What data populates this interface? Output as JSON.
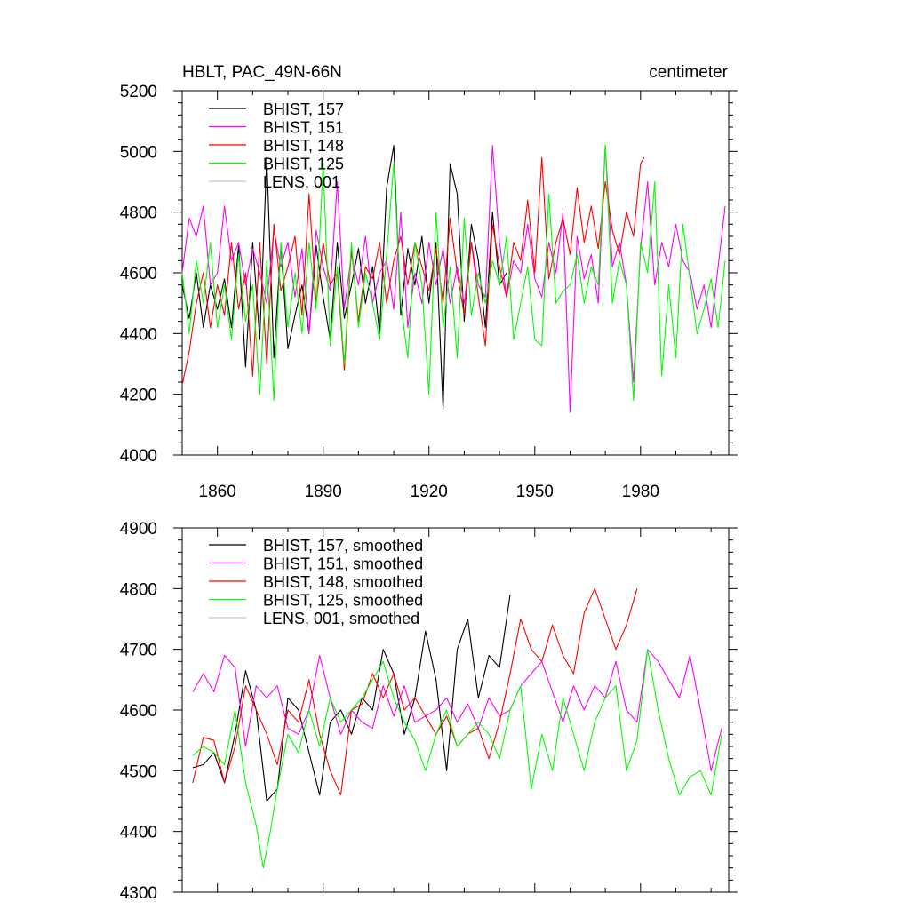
{
  "chart_data": [
    {
      "type": "line",
      "title": "HBLT, PAC_49N-66N",
      "units_label": "centimeter",
      "xlabel": "",
      "ylabel": "",
      "xlim": [
        1850,
        2005
      ],
      "ylim": [
        4000,
        5200
      ],
      "x_ticks": [
        1860,
        1890,
        1920,
        1950,
        1980
      ],
      "y_ticks": [
        4000,
        4200,
        4400,
        4600,
        4800,
        5000,
        5200
      ],
      "grid": false,
      "legend_position": "top-left",
      "series": [
        {
          "name": "BHIST, 157",
          "color": "#000000",
          "x": [
            1850,
            1852,
            1854,
            1856,
            1858,
            1860,
            1862,
            1864,
            1866,
            1868,
            1870,
            1872,
            1874,
            1876,
            1878,
            1880,
            1882,
            1884,
            1886,
            1888,
            1890,
            1892,
            1894,
            1896,
            1898,
            1900,
            1902,
            1904,
            1906,
            1908,
            1910,
            1912,
            1914,
            1916,
            1918,
            1920,
            1922,
            1924,
            1926,
            1928,
            1930,
            1932,
            1934,
            1936,
            1938,
            1940,
            1942
          ],
          "values": [
            4560,
            4450,
            4600,
            4420,
            4560,
            4480,
            4580,
            4420,
            4690,
            4290,
            4700,
            4380,
            4980,
            4320,
            4690,
            4350,
            4460,
            4560,
            4400,
            4690,
            4520,
            4380,
            4700,
            4450,
            4560,
            4680,
            4500,
            4620,
            4400,
            4880,
            5020,
            4460,
            4680,
            4560,
            4720,
            4500,
            4700,
            4150,
            4960,
            4860,
            4440,
            4760,
            4640,
            4420,
            4800,
            4560,
            4600
          ]
        },
        {
          "name": "BHIST, 151",
          "color": "#ff00ff",
          "x": [
            1850,
            1852,
            1854,
            1856,
            1858,
            1860,
            1862,
            1864,
            1866,
            1868,
            1870,
            1872,
            1874,
            1876,
            1878,
            1880,
            1882,
            1884,
            1886,
            1888,
            1890,
            1892,
            1894,
            1896,
            1898,
            1900,
            1902,
            1904,
            1906,
            1908,
            1910,
            1912,
            1914,
            1916,
            1918,
            1920,
            1922,
            1924,
            1926,
            1928,
            1930,
            1932,
            1934,
            1936,
            1938,
            1940,
            1942,
            1944,
            1946,
            1948,
            1950,
            1952,
            1954,
            1956,
            1958,
            1960,
            1962,
            1964,
            1966,
            1968,
            1970,
            1972,
            1974,
            1976,
            1978,
            1980,
            1982,
            1984,
            1986,
            1988,
            1990,
            1992,
            1994,
            1996,
            1998,
            2000,
            2002,
            2004
          ],
          "values": [
            4600,
            4780,
            4720,
            4820,
            4560,
            4600,
            4820,
            4640,
            4700,
            4560,
            4680,
            4600,
            4500,
            4740,
            4620,
            4700,
            4520,
            4680,
            4400,
            4740,
            4620,
            4540,
            4900,
            4480,
            4660,
            4560,
            4720,
            4500,
            4600,
            4640,
            4480,
            4800,
            4420,
            4600,
            4500,
            4700,
            4560,
            4680,
            4500,
            4620,
            4500,
            4700,
            4560,
            4520,
            5020,
            4700,
            4520,
            4640,
            4600,
            4760,
            4580,
            4520,
            4700,
            4600,
            4800,
            4140,
            4720,
            4580,
            4660,
            4500,
            5020,
            4620,
            4700,
            4560,
            4240,
            4680,
            4900,
            4560,
            4700,
            4620,
            4760,
            4640,
            4600,
            4480,
            4560,
            4420,
            4620,
            4820
          ]
        },
        {
          "name": "BHIST, 148",
          "color": "#ff0000",
          "x": [
            1850,
            1852,
            1854,
            1856,
            1858,
            1860,
            1862,
            1864,
            1866,
            1868,
            1870,
            1872,
            1874,
            1876,
            1878,
            1880,
            1882,
            1884,
            1886,
            1888,
            1890,
            1892,
            1894,
            1896,
            1898,
            1900,
            1902,
            1904,
            1906,
            1908,
            1910,
            1912,
            1914,
            1916,
            1918,
            1920,
            1922,
            1924,
            1926,
            1928,
            1930,
            1932,
            1934,
            1936,
            1938,
            1940,
            1942,
            1944,
            1946,
            1948,
            1950,
            1952,
            1954,
            1956,
            1958,
            1960,
            1962,
            1964,
            1966,
            1968,
            1970,
            1972,
            1974,
            1976,
            1978,
            1980,
            1981
          ],
          "values": [
            4230,
            4340,
            4500,
            4600,
            4420,
            4560,
            4460,
            4700,
            4480,
            4600,
            4260,
            4700,
            4300,
            4760,
            4540,
            4620,
            4720,
            4460,
            4860,
            4500,
            4700,
            4560,
            4600,
            4280,
            4680,
            4440,
            4620,
            4580,
            4700,
            4500,
            4640,
            4720,
            4560,
            4700,
            4620,
            4540,
            4680,
            4500,
            4780,
            4600,
            4460,
            4700,
            4520,
            4360,
            4760,
            4620,
            4520,
            4700,
            4640,
            4840,
            4600,
            4980,
            4580,
            4700,
            4780,
            4660,
            4880,
            4700,
            4820,
            4680,
            4900,
            4740,
            4660,
            4800,
            4720,
            4960,
            4980
          ]
        },
        {
          "name": "BHIST, 125",
          "color": "#00ff00",
          "x": [
            1850,
            1852,
            1854,
            1856,
            1858,
            1860,
            1862,
            1864,
            1866,
            1868,
            1870,
            1872,
            1874,
            1876,
            1878,
            1880,
            1882,
            1884,
            1886,
            1888,
            1890,
            1892,
            1894,
            1896,
            1898,
            1900,
            1902,
            1904,
            1906,
            1908,
            1910,
            1912,
            1914,
            1916,
            1918,
            1920,
            1922,
            1924,
            1926,
            1928,
            1930,
            1932,
            1934,
            1936,
            1938,
            1940,
            1942,
            1944,
            1946,
            1948,
            1950,
            1952,
            1954,
            1956,
            1958,
            1960,
            1962,
            1964,
            1966,
            1968,
            1970,
            1972,
            1974,
            1976,
            1978,
            1980,
            1982,
            1984,
            1986,
            1988,
            1990,
            1992,
            1994,
            1996,
            1998,
            2000,
            2002,
            2004
          ],
          "values": [
            4600,
            4400,
            4640,
            4500,
            4700,
            4420,
            4560,
            4380,
            4660,
            4440,
            4560,
            4200,
            4640,
            4180,
            4700,
            4420,
            4600,
            4400,
            4700,
            4480,
            4960,
            4360,
            4620,
            4300,
            4700,
            4420,
            4600,
            4500,
            4380,
            4660,
            4960,
            4500,
            4320,
            4700,
            4560,
            4200,
            4800,
            4420,
            4620,
            4320,
            4780,
            4460,
            4600,
            4500,
            4640,
            4560,
            4720,
            4380,
            4500,
            4620,
            4380,
            4360,
            4860,
            4500,
            4540,
            4560,
            4660,
            4500,
            4620,
            4560,
            5020,
            4500,
            4640,
            4560,
            4180,
            4700,
            4600,
            4900,
            4260,
            4560,
            4320,
            4760,
            4580,
            4400,
            4480,
            4580,
            4420,
            4640
          ]
        },
        {
          "name": "LENS, 001",
          "color": "#c8c8c8",
          "x": [],
          "values": []
        }
      ]
    },
    {
      "type": "line",
      "title": "",
      "xlabel": "",
      "ylabel": "",
      "xlim": [
        1850,
        2005
      ],
      "ylim": [
        4300,
        4900
      ],
      "x_ticks": [
        1860,
        1890,
        1920,
        1950,
        1980
      ],
      "y_ticks": [
        4300,
        4400,
        4500,
        4600,
        4700,
        4800,
        4900
      ],
      "grid": false,
      "legend_position": "top-left",
      "series": [
        {
          "name": "BHIST, 157, smoothed",
          "color": "#000000",
          "x": [
            1853,
            1856,
            1859,
            1862,
            1865,
            1868,
            1871,
            1874,
            1877,
            1880,
            1883,
            1886,
            1889,
            1892,
            1895,
            1898,
            1901,
            1904,
            1907,
            1910,
            1913,
            1916,
            1919,
            1922,
            1925,
            1928,
            1931,
            1934,
            1937,
            1940,
            1943
          ],
          "values": [
            4505,
            4510,
            4530,
            4480,
            4560,
            4665,
            4600,
            4450,
            4470,
            4620,
            4600,
            4530,
            4460,
            4580,
            4600,
            4560,
            4620,
            4600,
            4700,
            4660,
            4560,
            4620,
            4730,
            4650,
            4500,
            4700,
            4750,
            4620,
            4690,
            4670,
            4790
          ]
        },
        {
          "name": "BHIST, 151, smoothed",
          "color": "#ff00ff",
          "x": [
            1853,
            1856,
            1859,
            1862,
            1865,
            1868,
            1871,
            1874,
            1877,
            1880,
            1883,
            1886,
            1889,
            1892,
            1895,
            1898,
            1901,
            1904,
            1907,
            1910,
            1913,
            1916,
            1919,
            1922,
            1925,
            1928,
            1931,
            1934,
            1937,
            1940,
            1943,
            1946,
            1949,
            1952,
            1955,
            1958,
            1961,
            1964,
            1967,
            1970,
            1973,
            1976,
            1979,
            1982,
            1985,
            1988,
            1991,
            1994,
            1997,
            2000,
            2003
          ],
          "values": [
            4630,
            4660,
            4630,
            4690,
            4670,
            4540,
            4640,
            4620,
            4640,
            4570,
            4560,
            4600,
            4690,
            4620,
            4560,
            4600,
            4580,
            4570,
            4640,
            4590,
            4640,
            4580,
            4590,
            4600,
            4620,
            4580,
            4610,
            4570,
            4620,
            4590,
            4600,
            4640,
            4660,
            4680,
            4630,
            4580,
            4640,
            4600,
            4640,
            4620,
            4680,
            4600,
            4580,
            4700,
            4680,
            4650,
            4620,
            4690,
            4600,
            4500,
            4570
          ]
        },
        {
          "name": "BHIST, 148, smoothed",
          "color": "#ff0000",
          "x": [
            1853,
            1856,
            1859,
            1862,
            1865,
            1868,
            1871,
            1874,
            1877,
            1880,
            1883,
            1886,
            1889,
            1892,
            1895,
            1898,
            1901,
            1904,
            1907,
            1910,
            1913,
            1916,
            1919,
            1922,
            1925,
            1928,
            1931,
            1934,
            1937,
            1940,
            1943,
            1946,
            1949,
            1952,
            1955,
            1958,
            1961,
            1964,
            1967,
            1970,
            1973,
            1976,
            1979
          ],
          "values": [
            4480,
            4555,
            4550,
            4480,
            4540,
            4640,
            4600,
            4560,
            4510,
            4600,
            4580,
            4650,
            4560,
            4500,
            4460,
            4600,
            4610,
            4660,
            4620,
            4660,
            4600,
            4620,
            4590,
            4560,
            4590,
            4540,
            4560,
            4570,
            4520,
            4580,
            4660,
            4750,
            4700,
            4680,
            4740,
            4690,
            4660,
            4760,
            4800,
            4750,
            4700,
            4740,
            4800
          ]
        },
        {
          "name": "BHIST, 125, smoothed",
          "color": "#00ff00",
          "x": [
            1853,
            1856,
            1859,
            1862,
            1865,
            1868,
            1871,
            1873,
            1875,
            1877,
            1880,
            1883,
            1886,
            1889,
            1892,
            1895,
            1898,
            1901,
            1904,
            1907,
            1910,
            1913,
            1916,
            1919,
            1922,
            1925,
            1928,
            1931,
            1934,
            1937,
            1940,
            1943,
            1946,
            1949,
            1952,
            1955,
            1958,
            1961,
            1964,
            1967,
            1970,
            1973,
            1976,
            1979,
            1982,
            1985,
            1988,
            1991,
            1994,
            1997,
            2000,
            2003
          ],
          "values": [
            4525,
            4540,
            4530,
            4510,
            4600,
            4480,
            4410,
            4340,
            4400,
            4470,
            4560,
            4530,
            4600,
            4540,
            4620,
            4580,
            4600,
            4620,
            4650,
            4680,
            4620,
            4580,
            4550,
            4500,
            4560,
            4600,
            4540,
            4560,
            4580,
            4560,
            4520,
            4600,
            4640,
            4470,
            4560,
            4500,
            4620,
            4560,
            4500,
            4580,
            4620,
            4640,
            4500,
            4550,
            4700,
            4600,
            4520,
            4460,
            4490,
            4500,
            4460,
            4560
          ]
        },
        {
          "name": "LENS, 001, smoothed",
          "color": "#c8c8c8",
          "x": [],
          "values": []
        }
      ]
    }
  ]
}
